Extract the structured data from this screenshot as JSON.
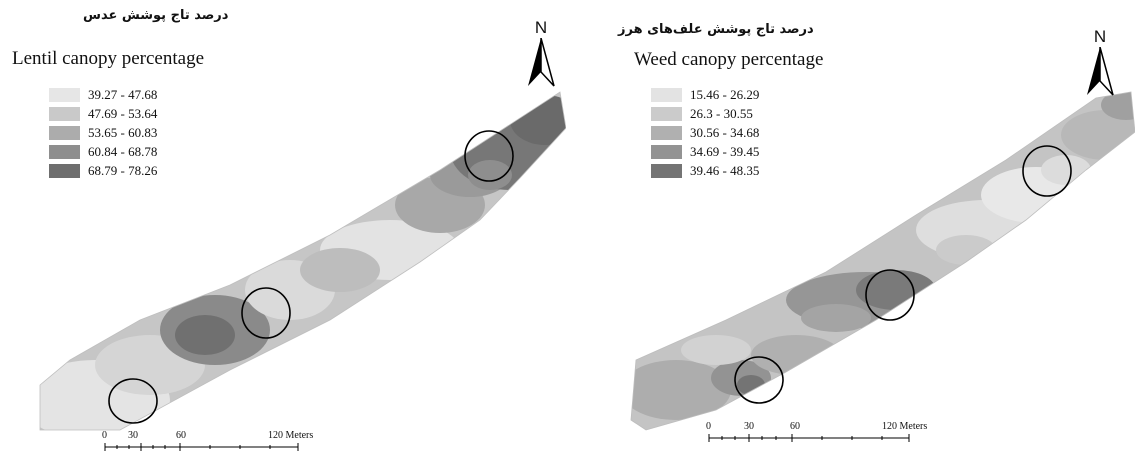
{
  "left_map": {
    "title_fa": "درصد تاج پوشش عدس",
    "title_en": "Lentil canopy percentage",
    "north_label": "N",
    "legend": [
      {
        "label": "39.27 - 47.68",
        "color": "#e6e6e6"
      },
      {
        "label": "47.69 - 53.64",
        "color": "#c9c9c9"
      },
      {
        "label": "53.65 - 60.83",
        "color": "#acacac"
      },
      {
        "label": "60.84 - 68.78",
        "color": "#8e8e8e"
      },
      {
        "label": "68.79 - 78.26",
        "color": "#6e6e6e"
      }
    ],
    "scale": {
      "t0": "0",
      "t30": "30",
      "t60": "60",
      "t120": "120 Meters"
    }
  },
  "right_map": {
    "title_fa": "درصد تاج پوشش علف‌های هرز",
    "title_en": "Weed canopy percentage",
    "north_label": "N",
    "legend": [
      {
        "label": "15.46 - 26.29",
        "color": "#e3e3e3"
      },
      {
        "label": "26.3 - 30.55",
        "color": "#cbcbcb"
      },
      {
        "label": "30.56 - 34.68",
        "color": "#b0b0b0"
      },
      {
        "label": "34.69 - 39.45",
        "color": "#939393"
      },
      {
        "label": "39.46 - 48.35",
        "color": "#747474"
      }
    ],
    "scale": {
      "t0": "0",
      "t30": "30",
      "t60": "60",
      "t120": "120 Meters"
    }
  }
}
